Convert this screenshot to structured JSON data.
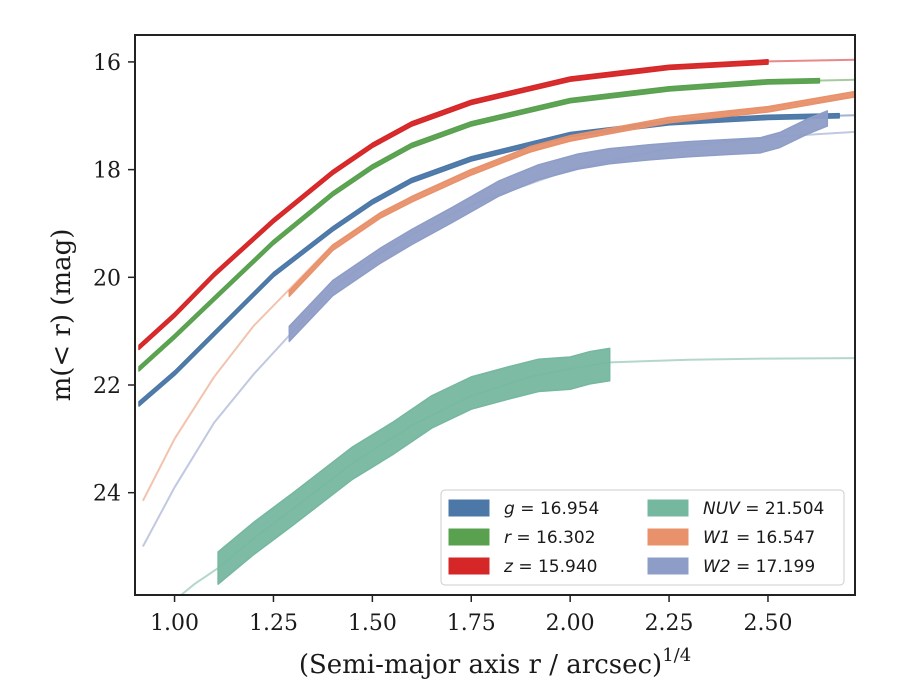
{
  "chart_data": {
    "type": "line",
    "xlabel": "(Semi-major axis r / arcsec)",
    "xlabel_superscript": "1/4",
    "ylabel": "m(< r) (mag)",
    "xlim": [
      0.9,
      2.72
    ],
    "ylim": [
      25.9,
      15.5
    ],
    "y_inverted": true,
    "xticks": [
      "1.00",
      "1.25",
      "1.50",
      "1.75",
      "2.00",
      "2.25",
      "2.50"
    ],
    "xtick_values": [
      1.0,
      1.25,
      1.5,
      1.75,
      2.0,
      2.25,
      2.5
    ],
    "yticks": [
      "16",
      "18",
      "20",
      "22",
      "24"
    ],
    "ytick_values": [
      16,
      18,
      20,
      22,
      24
    ],
    "grid": false,
    "legend_position": "lower-right",
    "legend_columns": 2,
    "series": [
      {
        "name": "g = 16.954",
        "band": "g",
        "mag": "16.954",
        "color": "#4c78a8",
        "model": [
          [
            0.91,
            22.35
          ],
          [
            1.0,
            21.78
          ],
          [
            1.1,
            21.05
          ],
          [
            1.25,
            19.95
          ],
          [
            1.4,
            19.1
          ],
          [
            1.5,
            18.6
          ],
          [
            1.6,
            18.2
          ],
          [
            1.75,
            17.8
          ],
          [
            2.0,
            17.35
          ],
          [
            2.25,
            17.13
          ],
          [
            2.5,
            17.03
          ],
          [
            2.72,
            16.99
          ]
        ],
        "data": [
          [
            0.91,
            22.35
          ],
          [
            1.0,
            21.78
          ],
          [
            1.1,
            21.05
          ],
          [
            1.25,
            19.95
          ],
          [
            1.4,
            19.1
          ],
          [
            1.5,
            18.6
          ],
          [
            1.6,
            18.2
          ],
          [
            1.75,
            17.8
          ],
          [
            2.0,
            17.35
          ],
          [
            2.25,
            17.13
          ],
          [
            2.5,
            17.03
          ],
          [
            2.68,
            17.0
          ]
        ],
        "data_half_width": 0.04
      },
      {
        "name": "r = 16.302",
        "band": "r",
        "mag": "16.302",
        "color": "#59a14f",
        "model": [
          [
            0.91,
            21.7
          ],
          [
            1.0,
            21.1
          ],
          [
            1.1,
            20.4
          ],
          [
            1.25,
            19.35
          ],
          [
            1.4,
            18.45
          ],
          [
            1.5,
            17.95
          ],
          [
            1.6,
            17.55
          ],
          [
            1.75,
            17.15
          ],
          [
            2.0,
            16.72
          ],
          [
            2.25,
            16.5
          ],
          [
            2.5,
            16.37
          ],
          [
            2.72,
            16.33
          ]
        ],
        "data": [
          [
            0.91,
            21.7
          ],
          [
            1.0,
            21.1
          ],
          [
            1.1,
            20.4
          ],
          [
            1.25,
            19.35
          ],
          [
            1.4,
            18.45
          ],
          [
            1.5,
            17.95
          ],
          [
            1.6,
            17.55
          ],
          [
            1.75,
            17.15
          ],
          [
            2.0,
            16.72
          ],
          [
            2.25,
            16.5
          ],
          [
            2.5,
            16.37
          ],
          [
            2.63,
            16.35
          ]
        ],
        "data_half_width": 0.04
      },
      {
        "name": "z = 15.940",
        "band": "z",
        "mag": "15.940",
        "color": "#d62728",
        "model": [
          [
            0.91,
            21.3
          ],
          [
            1.0,
            20.7
          ],
          [
            1.1,
            19.95
          ],
          [
            1.25,
            18.95
          ],
          [
            1.4,
            18.05
          ],
          [
            1.5,
            17.55
          ],
          [
            1.6,
            17.15
          ],
          [
            1.75,
            16.75
          ],
          [
            2.0,
            16.32
          ],
          [
            2.25,
            16.1
          ],
          [
            2.5,
            15.99
          ],
          [
            2.72,
            15.96
          ]
        ],
        "data": [
          [
            0.91,
            21.3
          ],
          [
            1.0,
            20.7
          ],
          [
            1.1,
            19.95
          ],
          [
            1.25,
            18.95
          ],
          [
            1.4,
            18.05
          ],
          [
            1.5,
            17.55
          ],
          [
            1.6,
            17.15
          ],
          [
            1.75,
            16.75
          ],
          [
            2.0,
            16.32
          ],
          [
            2.25,
            16.1
          ],
          [
            2.5,
            16.0
          ]
        ],
        "data_half_width": 0.04
      },
      {
        "name": "NUV = 21.504",
        "band": "NUV",
        "mag": "21.504",
        "color": "#76b7a0",
        "model": [
          [
            0.95,
            26.3
          ],
          [
            1.05,
            25.7
          ],
          [
            1.11,
            25.4
          ],
          [
            1.2,
            24.85
          ],
          [
            1.3,
            24.3
          ],
          [
            1.45,
            23.45
          ],
          [
            1.6,
            22.75
          ],
          [
            1.75,
            22.2
          ],
          [
            1.9,
            21.85
          ],
          [
            2.0,
            21.7
          ],
          [
            2.1,
            21.58
          ],
          [
            2.3,
            21.53
          ],
          [
            2.5,
            21.51
          ],
          [
            2.72,
            21.5
          ]
        ],
        "data": [
          [
            1.11,
            25.4
          ],
          [
            1.2,
            24.85
          ],
          [
            1.3,
            24.3
          ],
          [
            1.45,
            23.45
          ],
          [
            1.55,
            23.0
          ],
          [
            1.65,
            22.5
          ],
          [
            1.75,
            22.15
          ],
          [
            1.85,
            21.95
          ],
          [
            1.92,
            21.82
          ],
          [
            2.0,
            21.78
          ],
          [
            2.05,
            21.68
          ],
          [
            2.1,
            21.62
          ]
        ],
        "data_half_width": 0.3
      },
      {
        "name": "W1 = 16.547",
        "band": "W1",
        "mag": "16.547",
        "color": "#e8916b",
        "model": [
          [
            0.92,
            24.15
          ],
          [
            1.0,
            23.0
          ],
          [
            1.1,
            21.85
          ],
          [
            1.2,
            20.9
          ],
          [
            1.3,
            20.15
          ],
          [
            1.4,
            19.4
          ],
          [
            1.5,
            18.95
          ],
          [
            1.6,
            18.5
          ],
          [
            1.75,
            18.0
          ],
          [
            2.0,
            17.45
          ],
          [
            2.25,
            17.1
          ],
          [
            2.5,
            16.85
          ],
          [
            2.72,
            16.65
          ]
        ],
        "data": [
          [
            1.29,
            20.3
          ],
          [
            1.4,
            19.45
          ],
          [
            1.52,
            18.85
          ],
          [
            1.6,
            18.55
          ],
          [
            1.75,
            18.05
          ],
          [
            1.9,
            17.62
          ],
          [
            2.0,
            17.42
          ],
          [
            2.25,
            17.08
          ],
          [
            2.5,
            16.88
          ],
          [
            2.72,
            16.6
          ]
        ],
        "data_half_width": 0.05
      },
      {
        "name": "W2 = 17.199",
        "band": "W2",
        "mag": "17.199",
        "color": "#8e9dc7",
        "model": [
          [
            0.92,
            25.0
          ],
          [
            1.0,
            23.9
          ],
          [
            1.1,
            22.7
          ],
          [
            1.2,
            21.8
          ],
          [
            1.3,
            21.0
          ],
          [
            1.4,
            20.2
          ],
          [
            1.5,
            19.65
          ],
          [
            1.6,
            19.2
          ],
          [
            1.75,
            18.65
          ],
          [
            2.0,
            18.0
          ],
          [
            2.25,
            17.6
          ],
          [
            2.5,
            17.4
          ],
          [
            2.72,
            17.3
          ]
        ],
        "data": [
          [
            1.29,
            21.05
          ],
          [
            1.4,
            20.2
          ],
          [
            1.52,
            19.6
          ],
          [
            1.6,
            19.25
          ],
          [
            1.7,
            18.85
          ],
          [
            1.82,
            18.35
          ],
          [
            1.92,
            18.05
          ],
          [
            2.02,
            17.85
          ],
          [
            2.1,
            17.75
          ],
          [
            2.2,
            17.68
          ],
          [
            2.3,
            17.62
          ],
          [
            2.4,
            17.58
          ],
          [
            2.48,
            17.55
          ],
          [
            2.53,
            17.45
          ],
          [
            2.6,
            17.2
          ],
          [
            2.65,
            17.05
          ]
        ],
        "data_half_width": 0.14
      }
    ]
  }
}
